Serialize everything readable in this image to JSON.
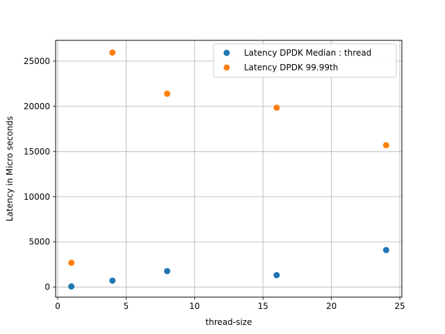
{
  "chart_data": {
    "type": "scatter",
    "xlabel": "thread-size",
    "ylabel": "Latency in Micro seconds",
    "xlim": [
      -0.15,
      25.15
    ],
    "ylim": [
      -1100,
      27300
    ],
    "xticks": [
      0,
      5,
      10,
      15,
      20,
      25
    ],
    "yticks": [
      0,
      5000,
      10000,
      15000,
      20000,
      25000
    ],
    "grid": true,
    "legend_position": "top-right",
    "series": [
      {
        "name": "Latency DPDK Median : thread",
        "color": "#1f77b4",
        "points": [
          {
            "x": 1,
            "y": 80
          },
          {
            "x": 4,
            "y": 720
          },
          {
            "x": 8,
            "y": 1780
          },
          {
            "x": 16,
            "y": 1330
          },
          {
            "x": 24,
            "y": 4100
          }
        ]
      },
      {
        "name": "Latency DPDK 99.99th",
        "color": "#ff7f0e",
        "points": [
          {
            "x": 1,
            "y": 2700
          },
          {
            "x": 4,
            "y": 25950
          },
          {
            "x": 8,
            "y": 21400
          },
          {
            "x": 16,
            "y": 19850
          },
          {
            "x": 24,
            "y": 15700
          }
        ]
      }
    ]
  }
}
